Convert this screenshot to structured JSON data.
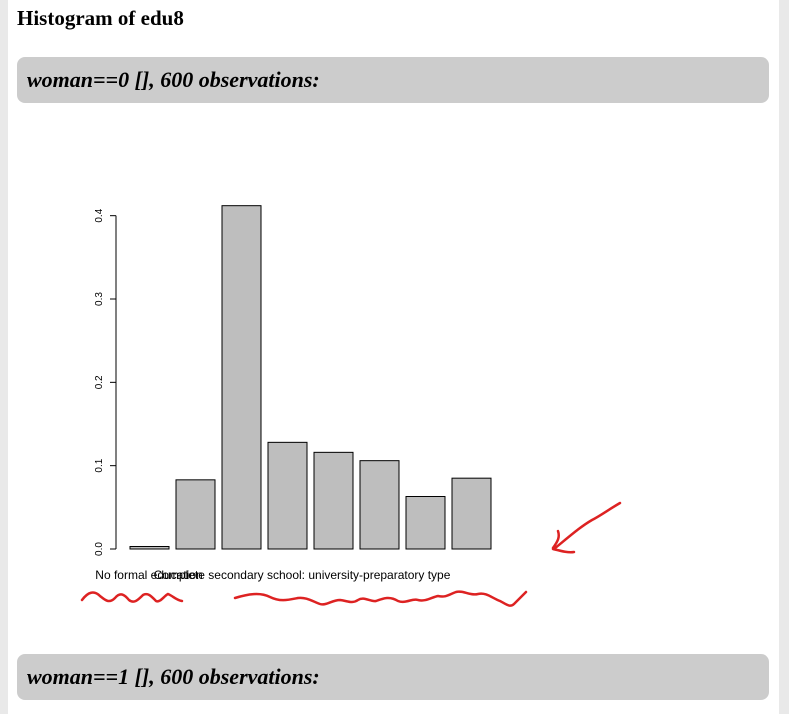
{
  "page": {
    "title": "Histogram of edu8"
  },
  "sections": [
    {
      "header": "woman==0 [], 600 observations:"
    },
    {
      "header": "woman==1 [], 600 observations:"
    }
  ],
  "chart_data": {
    "type": "bar",
    "title": "",
    "xlabel": "",
    "ylabel": "",
    "ylim": [
      0,
      0.42
    ],
    "yticks": [
      "0.0",
      "0.1",
      "0.2",
      "0.3",
      "0.4"
    ],
    "ytick_values": [
      0,
      0.1,
      0.2,
      0.3,
      0.4
    ],
    "categories": [
      "No formal education",
      "",
      "",
      "",
      "",
      "",
      "",
      "Complete secondary school: university-preparatory type"
    ],
    "visible_category_labels": [
      "No formal education",
      "Complete secondary school: university-preparatory type"
    ],
    "values": [
      0.003,
      0.083,
      0.412,
      0.128,
      0.116,
      0.106,
      0.063,
      0.085
    ],
    "bar_color": "#bebebe",
    "bar_stroke": "#000000",
    "annotation_color": "#dd2222",
    "grid": false
  }
}
